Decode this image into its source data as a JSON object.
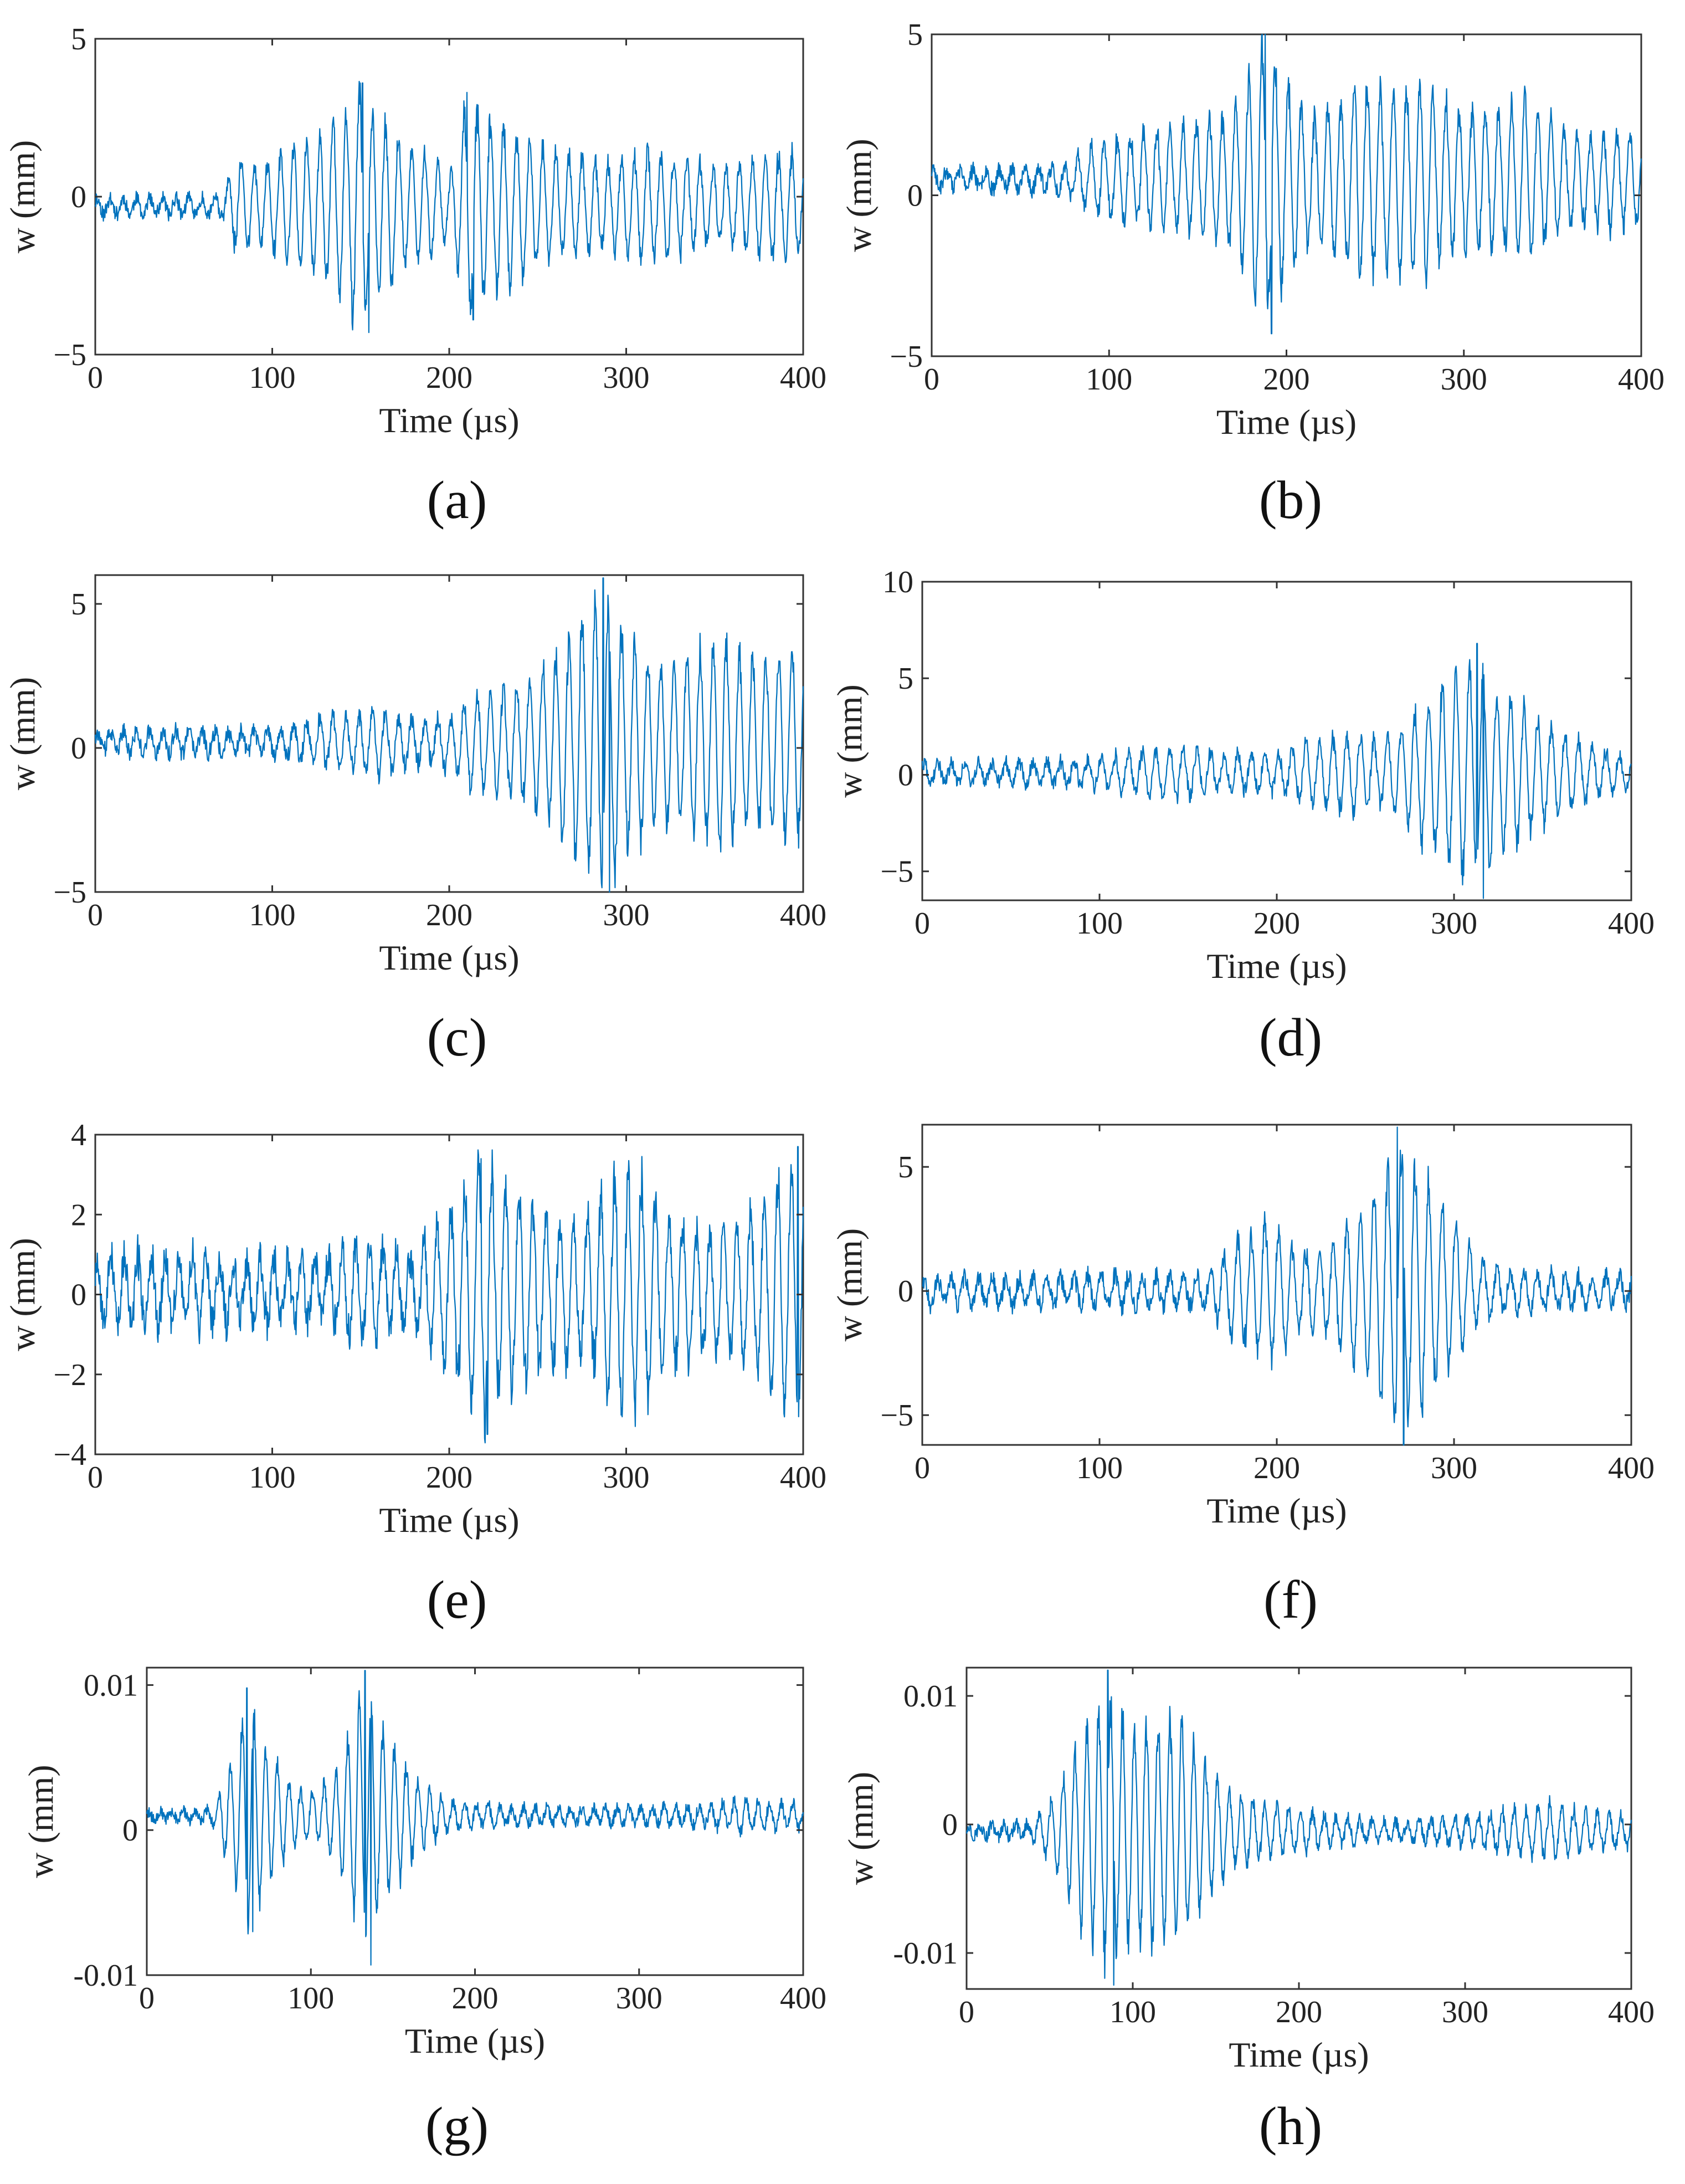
{
  "figure": {
    "line_color": "#0072BD"
  },
  "chart_data": [
    {
      "type": "line",
      "panel": "a",
      "caption": "(a)",
      "xlabel": "Time (µs)",
      "ylabel": "w (mm)",
      "xlim": [
        0,
        400
      ],
      "ylim": [
        -5,
        5
      ],
      "xticks": [
        0,
        100,
        200,
        300,
        400
      ],
      "xtick_labels": [
        "0",
        "100",
        "200",
        "300",
        "400"
      ],
      "yticks": [
        -5,
        0,
        5
      ],
      "ytick_labels": [
        "−5",
        "0",
        "5"
      ],
      "series": [
        {
          "name": "w",
          "noise": 0.22,
          "baseline": -0.3,
          "freq": 0.135,
          "seed": 11,
          "onset": 70,
          "envelope": [
            [
              0,
              0.25
            ],
            [
              70,
              0.3
            ],
            [
              80,
              1.4
            ],
            [
              95,
              1.2
            ],
            [
              110,
              2.0
            ],
            [
              125,
              2.2
            ],
            [
              140,
              3.0
            ],
            [
              150,
              3.8
            ],
            [
              160,
              3.0
            ],
            [
              175,
              2.0
            ],
            [
              190,
              1.6
            ],
            [
              200,
              1.0
            ],
            [
              210,
              3.5
            ],
            [
              220,
              3.0
            ],
            [
              235,
              2.5
            ],
            [
              250,
              2.0
            ],
            [
              270,
              1.6
            ],
            [
              290,
              1.4
            ],
            [
              310,
              1.8
            ],
            [
              330,
              1.6
            ],
            [
              350,
              1.2
            ],
            [
              370,
              1.4
            ],
            [
              385,
              1.8
            ],
            [
              400,
              1.6
            ]
          ],
          "peaks": [
            {
              "x": 151,
              "max": 3.6,
              "min": -4.3
            },
            {
              "x": 210,
              "max": 3.3,
              "min": -3.9
            }
          ]
        }
      ]
    },
    {
      "type": "line",
      "panel": "b",
      "caption": "(b)",
      "xlabel": "Time (µs)",
      "ylabel": "w (mm)",
      "xlim": [
        0,
        400
      ],
      "ylim": [
        -5,
        5
      ],
      "xticks": [
        0,
        100,
        200,
        300,
        400
      ],
      "xtick_labels": [
        "0",
        "100",
        "200",
        "300",
        "400"
      ],
      "yticks": [
        -5,
        0,
        5
      ],
      "ytick_labels": [
        "−5",
        "0",
        "5"
      ],
      "series": [
        {
          "name": "w",
          "noise": 0.25,
          "baseline": 0.5,
          "freq": 0.135,
          "seed": 23,
          "onset": 75,
          "envelope": [
            [
              0,
              0.3
            ],
            [
              75,
              0.4
            ],
            [
              90,
              1.1
            ],
            [
              110,
              1.4
            ],
            [
              130,
              1.6
            ],
            [
              150,
              1.8
            ],
            [
              170,
              2.2
            ],
            [
              180,
              3.6
            ],
            [
              188,
              4.5
            ],
            [
              200,
              3.2
            ],
            [
              215,
              2.0
            ],
            [
              230,
              2.5
            ],
            [
              240,
              3.4
            ],
            [
              255,
              2.8
            ],
            [
              275,
              3.0
            ],
            [
              300,
              2.4
            ],
            [
              320,
              2.2
            ],
            [
              335,
              2.6
            ],
            [
              350,
              1.8
            ],
            [
              370,
              1.4
            ],
            [
              390,
              1.6
            ],
            [
              400,
              1.5
            ]
          ],
          "peaks": [
            {
              "x": 188,
              "max": 5.0,
              "min": -4.3
            }
          ]
        }
      ]
    },
    {
      "type": "line",
      "panel": "c",
      "caption": "(c)",
      "xlabel": "Time (µs)",
      "ylabel": "w (mm)",
      "xlim": [
        0,
        400
      ],
      "ylim": [
        -5,
        6
      ],
      "xticks": [
        0,
        100,
        200,
        300,
        400
      ],
      "xtick_labels": [
        "0",
        "100",
        "200",
        "300",
        "400"
      ],
      "yticks": [
        -5,
        0,
        5
      ],
      "ytick_labels": [
        "−5",
        "0",
        "5"
      ],
      "series": [
        {
          "name": "w",
          "noise": 0.28,
          "baseline": 0.2,
          "freq": 0.135,
          "seed": 37,
          "onset": 100,
          "envelope": [
            [
              0,
              0.35
            ],
            [
              100,
              0.45
            ],
            [
              130,
              0.9
            ],
            [
              160,
              1.1
            ],
            [
              190,
              0.7
            ],
            [
              205,
              1.2
            ],
            [
              215,
              1.8
            ],
            [
              240,
              2.0
            ],
            [
              262,
              3.2
            ],
            [
              275,
              4.5
            ],
            [
              287,
              5.6
            ],
            [
              300,
              3.8
            ],
            [
              320,
              2.8
            ],
            [
              340,
              3.2
            ],
            [
              355,
              3.8
            ],
            [
              370,
              3.0
            ],
            [
              390,
              3.5
            ],
            [
              400,
              3.2
            ]
          ],
          "peaks": [
            {
              "x": 287,
              "max": 5.9,
              "min": -5.0
            }
          ]
        }
      ]
    },
    {
      "type": "line",
      "panel": "d",
      "caption": "(d)",
      "xlabel": "Time (µs)",
      "ylabel": "w (mm)",
      "xlim": [
        0,
        400
      ],
      "ylim": [
        -6.5,
        10
      ],
      "xticks": [
        0,
        100,
        200,
        300,
        400
      ],
      "xtick_labels": [
        "0",
        "100",
        "200",
        "300",
        "400"
      ],
      "yticks": [
        -5,
        0,
        5,
        10
      ],
      "ytick_labels": [
        "−5",
        "0",
        "5",
        "10"
      ],
      "series": [
        {
          "name": "w",
          "noise": 0.35,
          "baseline": 0.1,
          "freq": 0.13,
          "seed": 41,
          "onset": 80,
          "envelope": [
            [
              0,
              0.5
            ],
            [
              80,
              0.6
            ],
            [
              110,
              1.0
            ],
            [
              140,
              1.4
            ],
            [
              170,
              1.0
            ],
            [
              200,
              1.0
            ],
            [
              225,
              1.8
            ],
            [
              245,
              2.2
            ],
            [
              260,
              1.6
            ],
            [
              275,
              3.0
            ],
            [
              295,
              4.8
            ],
            [
              310,
              6.0
            ],
            [
              325,
              4.6
            ],
            [
              345,
              3.0
            ],
            [
              365,
              2.0
            ],
            [
              385,
              1.2
            ],
            [
              400,
              0.7
            ]
          ],
          "peaks": [
            {
              "x": 313,
              "max": 6.8,
              "min": -6.4
            }
          ]
        }
      ]
    },
    {
      "type": "line",
      "panel": "e",
      "caption": "(e)",
      "xlabel": "Time (µs)",
      "ylabel": "w (mm)",
      "xlim": [
        0,
        400
      ],
      "ylim": [
        -4,
        4
      ],
      "xticks": [
        0,
        100,
        200,
        300,
        400
      ],
      "xtick_labels": [
        "0",
        "100",
        "200",
        "300",
        "400"
      ],
      "yticks": [
        -4,
        -2,
        0,
        2,
        4
      ],
      "ytick_labels": [
        "−4",
        "−2",
        "0",
        "2",
        "4"
      ],
      "series": [
        {
          "name": "w",
          "noise": 0.45,
          "baseline": 0.1,
          "freq": 0.13,
          "seed": 53,
          "onset": 130,
          "envelope": [
            [
              0,
              0.9
            ],
            [
              40,
              0.9
            ],
            [
              80,
              0.8
            ],
            [
              130,
              0.9
            ],
            [
              150,
              1.3
            ],
            [
              180,
              0.9
            ],
            [
              200,
              2.0
            ],
            [
              218,
              3.3
            ],
            [
              235,
              2.6
            ],
            [
              255,
              2.0
            ],
            [
              275,
              1.6
            ],
            [
              292,
              2.8
            ],
            [
              305,
              3.2
            ],
            [
              320,
              2.2
            ],
            [
              345,
              1.6
            ],
            [
              365,
              1.8
            ],
            [
              385,
              2.8
            ],
            [
              398,
              3.6
            ],
            [
              400,
              3.4
            ]
          ],
          "peaks": [
            {
              "x": 218,
              "max": 3.4,
              "min": -3.5
            },
            {
              "x": 397,
              "max": 3.7,
              "min": -3.6
            }
          ]
        }
      ]
    },
    {
      "type": "line",
      "panel": "f",
      "caption": "(f)",
      "xlabel": "Time (µs)",
      "ylabel": "w (mm)",
      "xlim": [
        0,
        400
      ],
      "ylim": [
        -6.2,
        6.7
      ],
      "xticks": [
        0,
        100,
        200,
        300,
        400
      ],
      "xtick_labels": [
        "0",
        "100",
        "200",
        "300",
        "400"
      ],
      "yticks": [
        -5,
        0,
        5
      ],
      "ytick_labels": [
        "−5",
        "0",
        "5"
      ],
      "series": [
        {
          "name": "w",
          "noise": 0.35,
          "baseline": 0.0,
          "freq": 0.13,
          "seed": 67,
          "onset": 160,
          "envelope": [
            [
              0,
              0.55
            ],
            [
              160,
              0.7
            ],
            [
              175,
              2.0
            ],
            [
              195,
              3.0
            ],
            [
              210,
              1.8
            ],
            [
              225,
              1.5
            ],
            [
              245,
              3.2
            ],
            [
              262,
              5.0
            ],
            [
              270,
              6.0
            ],
            [
              285,
              4.6
            ],
            [
              300,
              3.0
            ],
            [
              315,
              1.2
            ],
            [
              330,
              0.8
            ],
            [
              360,
              0.7
            ],
            [
              400,
              0.6
            ]
          ],
          "peaks": [
            {
              "x": 268,
              "max": 6.6,
              "min": -6.2
            }
          ]
        }
      ]
    },
    {
      "type": "line",
      "panel": "g",
      "caption": "(g)",
      "xlabel": "Time (µs)",
      "ylabel": "w (mm)",
      "xlim": [
        0,
        400
      ],
      "ylim": [
        -0.01,
        0.0112
      ],
      "xticks": [
        0,
        100,
        200,
        300,
        400
      ],
      "xtick_labels": [
        "0",
        "100",
        "200",
        "300",
        "400"
      ],
      "yticks": [
        -0.01,
        0,
        0.01
      ],
      "ytick_labels": [
        "-0.01",
        "0",
        "0.01"
      ],
      "series": [
        {
          "name": "w",
          "noise": 0.0004,
          "baseline": 0.001,
          "freq": 0.14,
          "seed": 79,
          "onset": 40,
          "envelope": [
            [
              0,
              0.0003
            ],
            [
              40,
              0.0004
            ],
            [
              52,
              0.004
            ],
            [
              62,
              0.0085
            ],
            [
              72,
              0.005
            ],
            [
              90,
              0.002
            ],
            [
              100,
              0.0015
            ],
            [
              115,
              0.003
            ],
            [
              132,
              0.009
            ],
            [
              145,
              0.006
            ],
            [
              165,
              0.0025
            ],
            [
              185,
              0.001
            ],
            [
              220,
              0.0006
            ],
            [
              300,
              0.0006
            ],
            [
              340,
              0.0007
            ],
            [
              360,
              0.0012
            ],
            [
              380,
              0.0009
            ],
            [
              400,
              0.0008
            ]
          ],
          "peaks": [
            {
              "x": 61,
              "max": 0.0098,
              "min": -0.007
            },
            {
              "x": 133,
              "max": 0.011,
              "min": -0.0093
            }
          ]
        }
      ]
    },
    {
      "type": "line",
      "panel": "h",
      "caption": "(h)",
      "xlabel": "Time (µs)",
      "ylabel": "w (mm)",
      "xlim": [
        0,
        400
      ],
      "ylim": [
        -0.0128,
        0.0122
      ],
      "xticks": [
        0,
        100,
        200,
        300,
        400
      ],
      "xtick_labels": [
        "0",
        "100",
        "200",
        "300",
        "400"
      ],
      "yticks": [
        -0.01,
        0,
        0.01
      ],
      "ytick_labels": [
        "-0.01",
        "0",
        "0.01"
      ],
      "series": [
        {
          "name": "w",
          "noise": 0.0005,
          "baseline": -0.0005,
          "freq": 0.14,
          "seed": 97,
          "onset": 40,
          "envelope": [
            [
              0,
              0.0004
            ],
            [
              40,
              0.0006
            ],
            [
              55,
              0.003
            ],
            [
              70,
              0.008
            ],
            [
              85,
              0.0105
            ],
            [
              100,
              0.0085
            ],
            [
              115,
              0.009
            ],
            [
              128,
              0.009
            ],
            [
              142,
              0.006
            ],
            [
              160,
              0.003
            ],
            [
              190,
              0.0018
            ],
            [
              230,
              0.0009
            ],
            [
              270,
              0.0008
            ],
            [
              300,
              0.0012
            ],
            [
              330,
              0.0017
            ],
            [
              350,
              0.0022
            ],
            [
              375,
              0.0016
            ],
            [
              400,
              0.0012
            ]
          ],
          "peaks": [
            {
              "x": 85,
              "max": 0.012,
              "min": -0.0125
            }
          ]
        }
      ]
    }
  ]
}
